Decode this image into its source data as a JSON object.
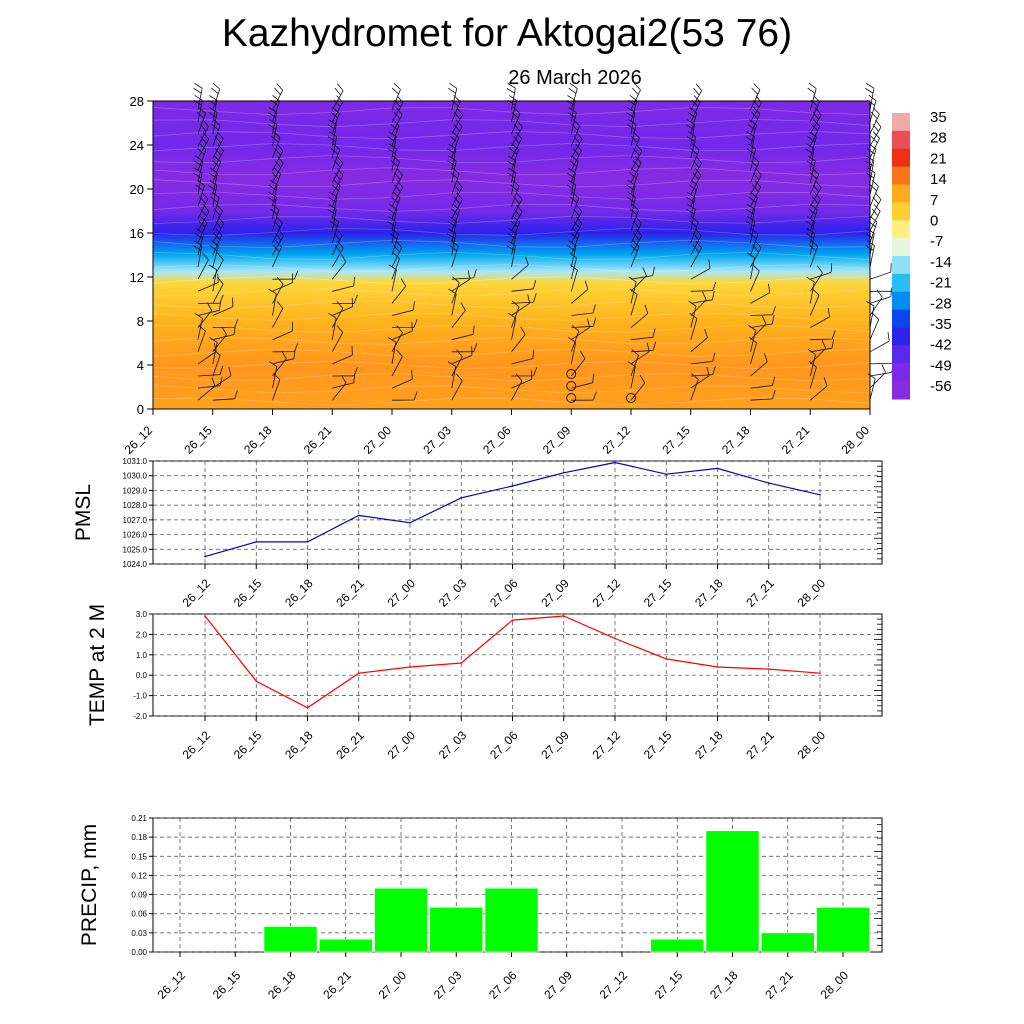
{
  "header": {
    "title": "Kazhydromet for Aktogai2(53 76)",
    "subtitle": "26 March 2026"
  },
  "time_labels": [
    "26_12",
    "26_15",
    "26_18",
    "26_21",
    "27_00",
    "27_03",
    "27_06",
    "27_09",
    "27_12",
    "27_15",
    "27_18",
    "27_21",
    "28_00"
  ],
  "chart_data": [
    {
      "type": "heatmap",
      "title": "Kazhydromet for Aktogai2(53 76)",
      "subtitle": "26 March 2026",
      "xlabel": "",
      "ylabel": "",
      "categories": [
        "26_12",
        "26_15",
        "26_18",
        "26_21",
        "27_00",
        "27_03",
        "27_06",
        "27_09",
        "27_12",
        "27_15",
        "27_18",
        "27_21",
        "28_00"
      ],
      "yticks": [
        "0",
        "4",
        "8",
        "12",
        "16",
        "20",
        "24",
        "28"
      ],
      "ylim": [
        0,
        28
      ],
      "colorbar_labels": [
        "35",
        "28",
        "21",
        "14",
        "7",
        "0",
        "-7",
        "-14",
        "-21",
        "-28",
        "-35",
        "-42",
        "-49",
        "-56"
      ],
      "temperature_profile": [
        {
          "height": 0,
          "temp": 12
        },
        {
          "height": 4,
          "temp": 14
        },
        {
          "height": 8,
          "temp": 9
        },
        {
          "height": 11.5,
          "temp": 2
        },
        {
          "height": 12.5,
          "temp": -16
        },
        {
          "height": 14,
          "temp": -28
        },
        {
          "height": 16,
          "temp": -45
        },
        {
          "height": 18,
          "temp": -58
        },
        {
          "height": 21,
          "temp": -62
        },
        {
          "height": 24,
          "temp": -57
        },
        {
          "height": 28,
          "temp": -60
        }
      ],
      "wind_barbs": "wind barbs at every time step and level"
    },
    {
      "type": "line",
      "ylabel": "PMSL",
      "categories": [
        "26_12",
        "26_15",
        "26_18",
        "26_21",
        "27_00",
        "27_03",
        "27_06",
        "27_09",
        "27_12",
        "27_15",
        "27_18",
        "27_21",
        "28_00"
      ],
      "values": [
        1024.5,
        1025.5,
        1025.5,
        1027.3,
        1026.8,
        1028.5,
        1029.3,
        1030.2,
        1030.9,
        1030.1,
        1030.5,
        1029.5,
        1028.7
      ],
      "ylim": [
        1024,
        1031
      ],
      "yticks": [
        "1024.0",
        "1025.0",
        "1026.0",
        "1027.0",
        "1028.0",
        "1029.0",
        "1030.0",
        "1031.0"
      ],
      "color": "#0000cc"
    },
    {
      "type": "line",
      "ylabel": "TEMP at 2 M",
      "categories": [
        "26_12",
        "26_15",
        "26_18",
        "26_21",
        "27_00",
        "27_03",
        "27_06",
        "27_09",
        "27_12",
        "27_15",
        "27_18",
        "27_21",
        "28_00"
      ],
      "values": [
        2.9,
        -0.3,
        -1.6,
        0.1,
        0.4,
        0.6,
        2.7,
        2.9,
        1.8,
        0.8,
        0.4,
        0.3,
        0.1
      ],
      "ylim": [
        -2,
        3
      ],
      "yticks": [
        "-2.0",
        "-1.0",
        "0.0",
        "1.0",
        "2.0",
        "3.0"
      ],
      "color": "#ff0000"
    },
    {
      "type": "bar",
      "ylabel": "PRECIP, mm",
      "categories": [
        "26_12",
        "26_15",
        "26_18",
        "26_21",
        "27_00",
        "27_03",
        "27_06",
        "27_09",
        "27_12",
        "27_15",
        "27_18",
        "27_21",
        "28_00"
      ],
      "values": [
        0,
        0,
        0.04,
        0.02,
        0.1,
        0.07,
        0.1,
        0,
        0,
        0.02,
        0.19,
        0.03,
        0.07
      ],
      "ylim": [
        0,
        0.21
      ],
      "yticks": [
        "0.00",
        "0.03",
        "0.06",
        "0.09",
        "0.12",
        "0.15",
        "0.18",
        "0.21"
      ],
      "color": "#00ff00"
    }
  ]
}
